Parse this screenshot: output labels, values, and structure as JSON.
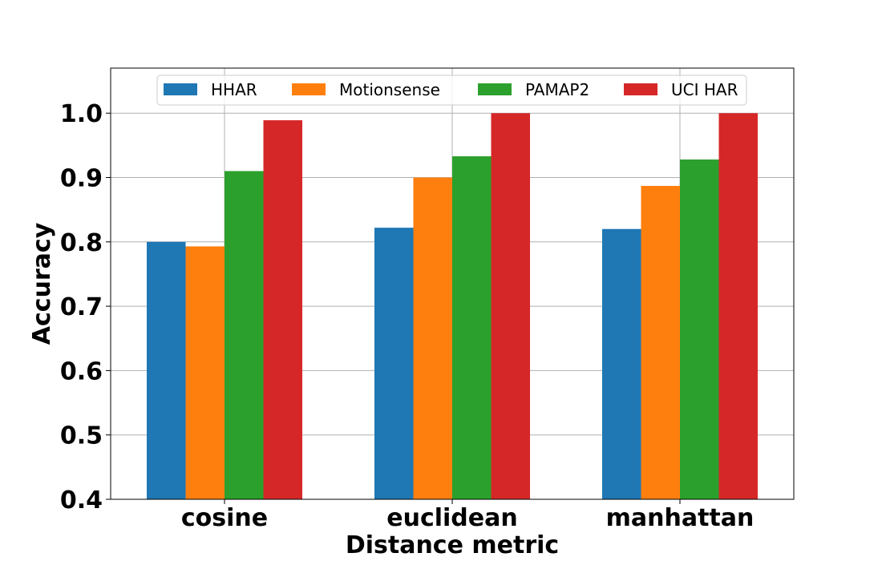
{
  "chart_data": {
    "type": "bar",
    "title": "",
    "xlabel": "Distance metric",
    "ylabel": "Accuracy",
    "categories": [
      "cosine",
      "euclidean",
      "manhattan"
    ],
    "series": [
      {
        "name": "HHAR",
        "color": "#1f77b4",
        "values": [
          0.8,
          0.822,
          0.82
        ]
      },
      {
        "name": "Motionsense",
        "color": "#ff7f0e",
        "values": [
          0.793,
          0.9,
          0.887
        ]
      },
      {
        "name": "PAMAP2",
        "color": "#2ca02c",
        "values": [
          0.91,
          0.933,
          0.928
        ]
      },
      {
        "name": "UCI HAR",
        "color": "#d62728",
        "values": [
          0.989,
          1.0,
          1.0
        ]
      }
    ],
    "ylim": [
      0.4,
      1.07
    ],
    "yticks": [
      "0.4",
      "0.5",
      "0.6",
      "0.7",
      "0.8",
      "0.9",
      "1.0"
    ],
    "grid": true,
    "legend_position": "top-center"
  }
}
